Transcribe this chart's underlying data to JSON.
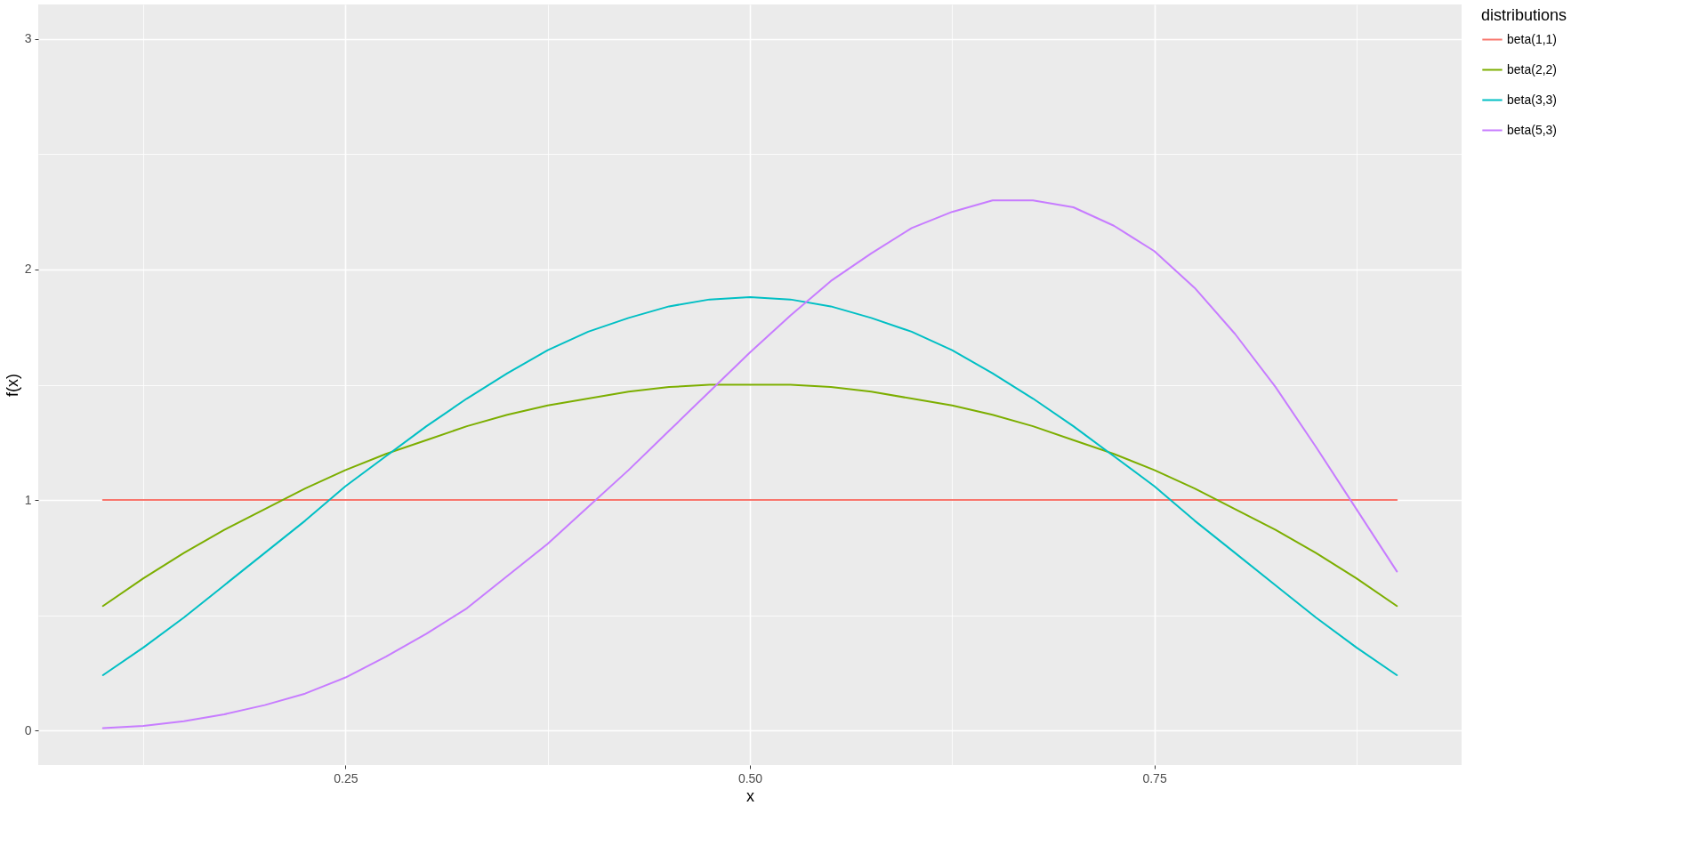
{
  "chart_data": {
    "type": "line",
    "xlabel": "x",
    "ylabel": "f(x)",
    "legend_title": "distributions",
    "legend": "right",
    "grid": true,
    "line_style": "solid",
    "x": [
      0.1,
      0.125,
      0.15,
      0.175,
      0.2,
      0.225,
      0.25,
      0.275,
      0.3,
      0.325,
      0.35,
      0.375,
      0.4,
      0.425,
      0.45,
      0.475,
      0.5,
      0.525,
      0.55,
      0.575,
      0.6,
      0.625,
      0.65,
      0.675,
      0.7,
      0.725,
      0.75,
      0.775,
      0.8,
      0.825,
      0.85,
      0.875,
      0.9
    ],
    "xlim": [
      0.06,
      0.94
    ],
    "xticks": [
      {
        "value": 0.125,
        "label": null
      },
      0.25,
      {
        "value": 0.375,
        "label": null
      },
      {
        "value": 0.5,
        "label": "0.50"
      },
      {
        "value": 0.625,
        "label": null
      },
      0.75,
      {
        "value": 0.875,
        "label": null
      }
    ],
    "ylim": [
      -0.15,
      3.15
    ],
    "yticks": [
      0,
      {
        "value": 0.5,
        "label": null
      },
      1,
      {
        "value": 1.5,
        "label": null
      },
      2,
      {
        "value": 2.5,
        "label": null
      },
      3
    ],
    "series": [
      {
        "name": "beta(1,1)",
        "color": "#f8766d",
        "values": [
          1,
          1,
          1,
          1,
          1,
          1,
          1,
          1,
          1,
          1,
          1,
          1,
          1,
          1,
          1,
          1,
          1,
          1,
          1,
          1,
          1,
          1,
          1,
          1,
          1,
          1,
          1,
          1,
          1,
          1,
          1,
          1,
          1
        ]
      },
      {
        "name": "beta(2,2)",
        "color": "#7cae00",
        "values": [
          0.54,
          0.66,
          0.77,
          0.87,
          0.96,
          1.05,
          1.13,
          1.2,
          1.26,
          1.32,
          1.37,
          1.41,
          1.44,
          1.47,
          1.49,
          1.5,
          1.5,
          1.5,
          1.49,
          1.47,
          1.44,
          1.41,
          1.37,
          1.32,
          1.26,
          1.2,
          1.13,
          1.05,
          0.96,
          0.87,
          0.77,
          0.66,
          0.54
        ]
      },
      {
        "name": "beta(3,3)",
        "color": "#00bfc4",
        "values": [
          0.24,
          0.36,
          0.49,
          0.63,
          0.77,
          0.91,
          1.06,
          1.19,
          1.32,
          1.44,
          1.55,
          1.65,
          1.73,
          1.79,
          1.84,
          1.87,
          1.88,
          1.87,
          1.84,
          1.79,
          1.73,
          1.65,
          1.55,
          1.44,
          1.32,
          1.19,
          1.06,
          0.91,
          0.77,
          0.63,
          0.49,
          0.36,
          0.24
        ]
      },
      {
        "name": "beta(5,3)",
        "color": "#c77cff",
        "values": [
          0.01,
          0.02,
          0.04,
          0.07,
          0.11,
          0.16,
          0.23,
          0.32,
          0.42,
          0.53,
          0.67,
          0.81,
          0.97,
          1.13,
          1.3,
          1.47,
          1.64,
          1.8,
          1.95,
          2.07,
          2.18,
          2.25,
          2.3,
          2.3,
          2.27,
          2.19,
          2.08,
          1.92,
          1.72,
          1.49,
          1.23,
          0.96,
          0.69
        ]
      }
    ]
  }
}
